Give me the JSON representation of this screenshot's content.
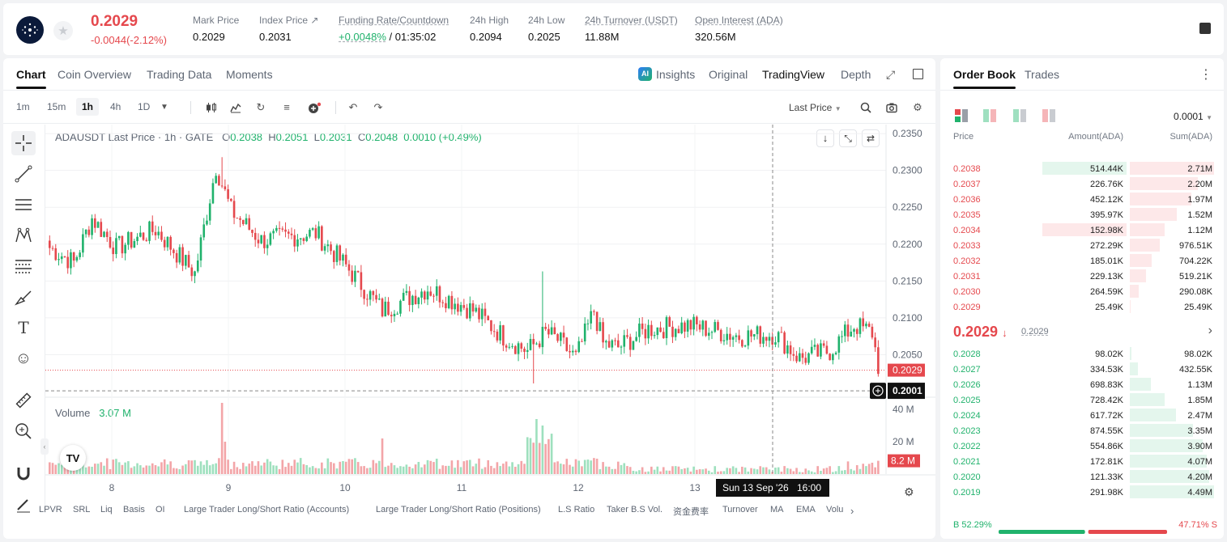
{
  "header": {
    "price": "0.2029",
    "change": "-0.0044(-2.12%)",
    "stats": [
      {
        "label": "Mark Price",
        "value": "0.2029"
      },
      {
        "label": "Index Price ↗",
        "value": "0.2031"
      },
      {
        "label": "Funding Rate/Countdown",
        "value": "+0.0048%",
        "value2": "/ 01:35:02"
      },
      {
        "label": "24h High",
        "value": "0.2094"
      },
      {
        "label": "24h Low",
        "value": "0.2025"
      },
      {
        "label": "24h Turnover (USDT)",
        "value": "11.88M"
      },
      {
        "label": "Open Interest (ADA)",
        "value": "320.56M"
      }
    ]
  },
  "chart_tabs": [
    "Chart",
    "Coin Overview",
    "Trading Data",
    "Moments"
  ],
  "view_tabs": [
    "Insights",
    "Original",
    "TradingView",
    "Depth"
  ],
  "timeframes": [
    "1m",
    "15m",
    "1h",
    "4h",
    "1D"
  ],
  "price_type": "Last Price",
  "legend": {
    "symbol": "ADAUSDT Last Price · 1h · GATE",
    "o_label": "O",
    "o": "0.2038",
    "h_label": "H",
    "h": "0.2051",
    "l_label": "L",
    "l": "0.2031",
    "c_label": "C",
    "c": "0.2048",
    "chg": "0.0010 (+0.49%)"
  },
  "volume_legend": {
    "label": "Volume",
    "value": "3.07 M"
  },
  "price_axis": [
    "0.2350",
    "0.2300",
    "0.2250",
    "0.2200",
    "0.2150",
    "0.2100",
    "0.2050"
  ],
  "last_price_tag": "0.2029",
  "cursor_price_tag": "0.2001",
  "volume_axis": [
    "40 M",
    "20 M"
  ],
  "volume_tag": "8.2 M",
  "date_axis": [
    "8",
    "9",
    "10",
    "11",
    "12",
    "13"
  ],
  "cursor_date": "Sun 13 Sep '26",
  "cursor_time": "16:00",
  "indicators": [
    "LPVR",
    "SRL",
    "Liq",
    "Basis",
    "OI",
    "Large Trader Long/Short Ratio (Accounts)",
    "Large Trader Long/Short Ratio (Positions)",
    "L.S Ratio",
    "Taker B.S Vol.",
    "资金费率",
    "Turnover",
    "MA",
    "EMA",
    "Volu"
  ],
  "orderbook": {
    "tabs": [
      "Order Book",
      "Trades"
    ],
    "precision": "0.0001",
    "headers": {
      "price": "Price",
      "amount": "Amount(ADA)",
      "sum": "Sum(ADA)"
    },
    "asks": [
      {
        "price": "0.2038",
        "amount": "514.44K",
        "sum": "2.71M",
        "amt_frac": 0.95,
        "sum_frac": 1.0
      },
      {
        "price": "0.2037",
        "amount": "226.76K",
        "sum": "2.20M",
        "amt_frac": 0,
        "sum_frac": 0.81
      },
      {
        "price": "0.2036",
        "amount": "452.12K",
        "sum": "1.97M",
        "amt_frac": 0,
        "sum_frac": 0.73
      },
      {
        "price": "0.2035",
        "amount": "395.97K",
        "sum": "1.52M",
        "amt_frac": 0,
        "sum_frac": 0.56
      },
      {
        "price": "0.2034",
        "amount": "152.98K",
        "sum": "1.12M",
        "amt_frac": 0.95,
        "sum_frac": 0.41
      },
      {
        "price": "0.2033",
        "amount": "272.29K",
        "sum": "976.51K",
        "amt_frac": 0,
        "sum_frac": 0.36
      },
      {
        "price": "0.2032",
        "amount": "185.01K",
        "sum": "704.22K",
        "amt_frac": 0,
        "sum_frac": 0.26
      },
      {
        "price": "0.2031",
        "amount": "229.13K",
        "sum": "519.21K",
        "amt_frac": 0,
        "sum_frac": 0.19
      },
      {
        "price": "0.2030",
        "amount": "264.59K",
        "sum": "290.08K",
        "amt_frac": 0,
        "sum_frac": 0.11
      },
      {
        "price": "0.2029",
        "amount": "25.49K",
        "sum": "25.49K",
        "amt_frac": 0,
        "sum_frac": 0.01
      }
    ],
    "mid_price": "0.2029",
    "mid_mark": "0.2029",
    "bids": [
      {
        "price": "0.2028",
        "amount": "98.02K",
        "sum": "98.02K",
        "sum_frac": 0.02
      },
      {
        "price": "0.2027",
        "amount": "334.53K",
        "sum": "432.55K",
        "sum_frac": 0.1
      },
      {
        "price": "0.2026",
        "amount": "698.83K",
        "sum": "1.13M",
        "sum_frac": 0.25
      },
      {
        "price": "0.2025",
        "amount": "728.42K",
        "sum": "1.85M",
        "sum_frac": 0.41
      },
      {
        "price": "0.2024",
        "amount": "617.72K",
        "sum": "2.47M",
        "sum_frac": 0.55
      },
      {
        "price": "0.2023",
        "amount": "874.55K",
        "sum": "3.35M",
        "sum_frac": 0.75
      },
      {
        "price": "0.2022",
        "amount": "554.86K",
        "sum": "3.90M",
        "sum_frac": 0.87
      },
      {
        "price": "0.2021",
        "amount": "172.81K",
        "sum": "4.07M",
        "sum_frac": 0.91
      },
      {
        "price": "0.2020",
        "amount": "121.33K",
        "sum": "4.20M",
        "sum_frac": 0.94
      },
      {
        "price": "0.2019",
        "amount": "291.98K",
        "sum": "4.49M",
        "sum_frac": 1.0
      }
    ],
    "buy_ratio": "B 52.29%",
    "sell_ratio": "47.71% S",
    "buy_frac": 0.5229
  },
  "colors": {
    "up": "#20b26c",
    "down": "#e5484d"
  }
}
